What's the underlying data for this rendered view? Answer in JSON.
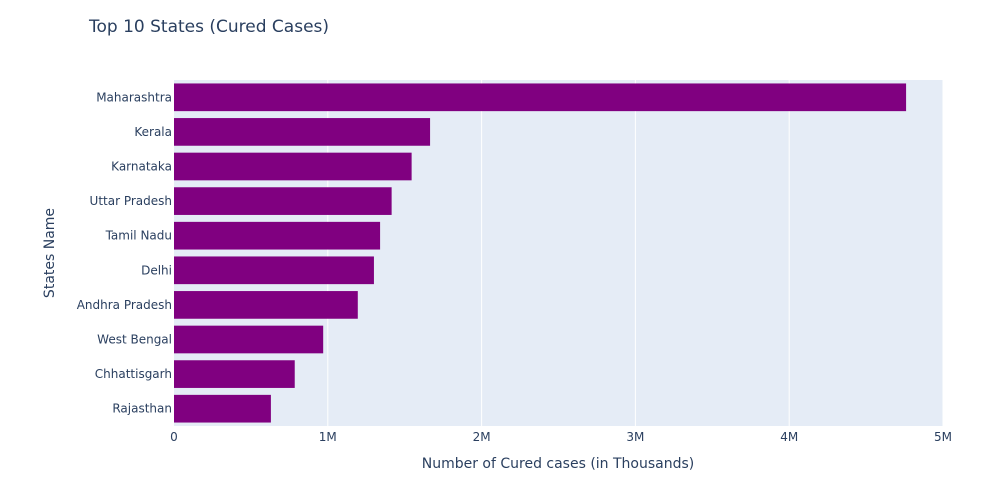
{
  "chart_data": {
    "type": "bar",
    "orientation": "horizontal",
    "title": "Top 10 States (Cured Cases)",
    "xlabel": "Number of Cured cases (in Thousands)",
    "ylabel": "States Name",
    "categories": [
      "Maharashtra",
      "Kerala",
      "Karnataka",
      "Uttar Pradesh",
      "Tamil Nadu",
      "Delhi",
      "Andhra Pradesh",
      "West Bengal",
      "Chhattisgarh",
      "Rajasthan"
    ],
    "values": [
      4760000,
      1665000,
      1545000,
      1415000,
      1340000,
      1300000,
      1195000,
      970000,
      785000,
      630000
    ],
    "xlim": [
      0,
      5000000
    ],
    "xticks": [
      {
        "value": 0,
        "label": "0"
      },
      {
        "value": 1000000,
        "label": "1M"
      },
      {
        "value": 2000000,
        "label": "2M"
      },
      {
        "value": 3000000,
        "label": "3M"
      },
      {
        "value": 4000000,
        "label": "4M"
      },
      {
        "value": 5000000,
        "label": "5M"
      }
    ],
    "grid": true,
    "legend": "none",
    "colors": {
      "bar": "#800080",
      "plot_background": "#e5ecf6",
      "grid": "#ffffff",
      "text": "#2a3f5f"
    }
  }
}
